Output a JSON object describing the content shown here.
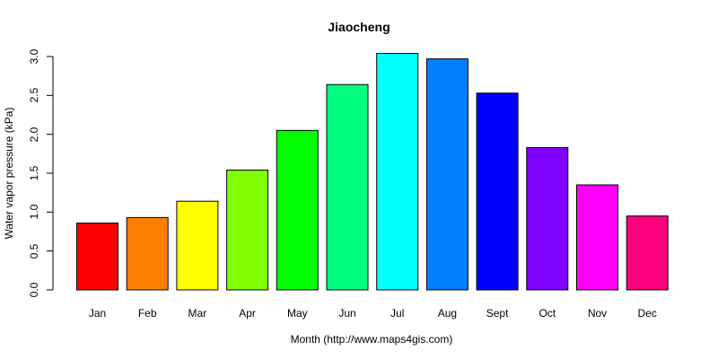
{
  "chart_data": {
    "type": "bar",
    "title": "Jiaocheng",
    "xlabel": "Month (http://www.maps4gis.com)",
    "ylabel": "Water vapor pressure (kPa)",
    "categories": [
      "Jan",
      "Feb",
      "Mar",
      "Apr",
      "May",
      "Jun",
      "Jul",
      "Aug",
      "Sept",
      "Oct",
      "Nov",
      "Dec"
    ],
    "values": [
      0.86,
      0.93,
      1.14,
      1.54,
      2.05,
      2.64,
      3.04,
      2.97,
      2.53,
      1.83,
      1.35,
      0.95
    ],
    "colors": [
      "#FF0000",
      "#FF8000",
      "#FFFF00",
      "#80FF00",
      "#00FF00",
      "#00FF80",
      "#00FFFF",
      "#0080FF",
      "#0000FF",
      "#8000FF",
      "#FF00FF",
      "#FF0080"
    ],
    "ylim": [
      0,
      3.0
    ],
    "yticks": [
      "0.0",
      "0.5",
      "1.0",
      "1.5",
      "2.0",
      "2.5",
      "3.0"
    ],
    "grid": false,
    "legend": "none"
  }
}
